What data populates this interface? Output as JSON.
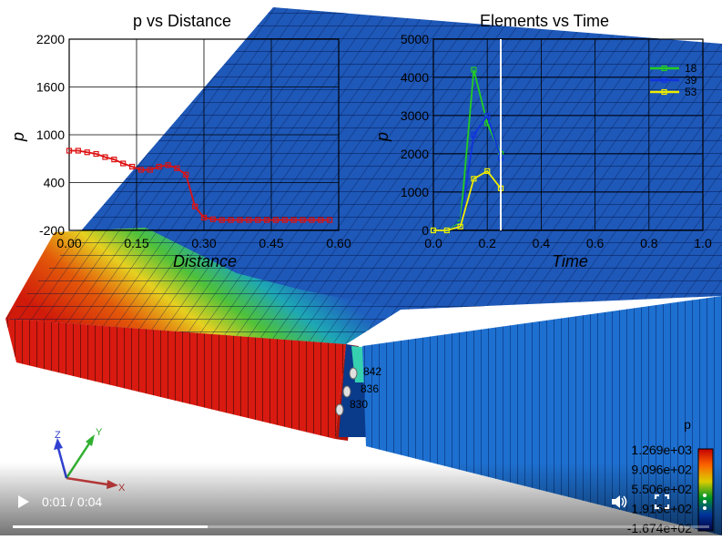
{
  "scene": {
    "node_labels": [
      "842",
      "836",
      "830"
    ],
    "colorbar": {
      "title": "p",
      "labels": [
        "1.269e+03",
        "9.096e+02",
        "5.506e+02",
        "1.916e+02",
        "-1.674e+02"
      ],
      "colors": [
        "#c40000",
        "#ff6600",
        "#ffee00",
        "#00cc33",
        "#0055ff",
        "#000a8a"
      ]
    },
    "triad": {
      "x": "X",
      "y": "Y",
      "z": "Z"
    }
  },
  "charts": {
    "left": {
      "title": "p vs Distance",
      "xlabel": "Distance",
      "ylabel": "p"
    },
    "right": {
      "title": "Elements vs Time",
      "xlabel": "Time",
      "ylabel": "p"
    }
  },
  "chart_data": [
    {
      "type": "line",
      "title": "p vs Distance",
      "xlabel": "Distance",
      "ylabel": "p",
      "xlim": [
        0,
        0.6
      ],
      "ylim": [
        -200,
        2200
      ],
      "xticks": [
        "0.00",
        "0.15",
        "0.30",
        "0.45",
        "0.60"
      ],
      "yticks": [
        "-200",
        "400",
        "1000",
        "1600",
        "2200"
      ],
      "series": [
        {
          "color": "#dd1111",
          "x": [
            0.0,
            0.02,
            0.04,
            0.06,
            0.08,
            0.1,
            0.12,
            0.14,
            0.16,
            0.18,
            0.2,
            0.22,
            0.24,
            0.26,
            0.28,
            0.3,
            0.32,
            0.34,
            0.36,
            0.38,
            0.4,
            0.42,
            0.44,
            0.46,
            0.48,
            0.5,
            0.52,
            0.54,
            0.56,
            0.58
          ],
          "y": [
            800,
            800,
            780,
            760,
            720,
            690,
            640,
            600,
            560,
            560,
            600,
            620,
            580,
            500,
            100,
            -40,
            -60,
            -70,
            -70,
            -70,
            -70,
            -70,
            -70,
            -70,
            -70,
            -70,
            -70,
            -70,
            -70,
            -70
          ]
        }
      ]
    },
    {
      "type": "line",
      "title": "Elements vs Time",
      "xlabel": "Time",
      "ylabel": "p",
      "xlim": [
        0,
        1.0
      ],
      "ylim": [
        0,
        5000
      ],
      "xticks": [
        "0.0",
        "0.2",
        "0.4",
        "0.6",
        "0.8",
        "1.0"
      ],
      "yticks": [
        "0",
        "1000",
        "2000",
        "3000",
        "4000",
        "5000"
      ],
      "current_time": 0.25,
      "series": [
        {
          "name": "18",
          "color": "#22cc22",
          "x": [
            0.0,
            0.05,
            0.1,
            0.15,
            0.2,
            0.25
          ],
          "y": [
            0,
            0,
            200,
            4200,
            2800,
            2000
          ]
        },
        {
          "name": "39",
          "color": "#1133dd",
          "x": [
            0.0,
            0.05,
            0.1,
            0.15,
            0.2,
            0.25
          ],
          "y": [
            0,
            0,
            150,
            2500,
            3000,
            1900
          ]
        },
        {
          "name": "53",
          "color": "#eeee00",
          "x": [
            0.0,
            0.05,
            0.1,
            0.15,
            0.2,
            0.25
          ],
          "y": [
            0,
            0,
            100,
            1350,
            1550,
            1100
          ]
        }
      ]
    }
  ],
  "player": {
    "time_display": "0:01 / 0:04",
    "progress": 0.28,
    "play_icon": "play-icon",
    "volume_icon": "volume-icon",
    "fullscreen_icon": "fullscreen-icon",
    "more_icon": "more-vert-icon"
  }
}
